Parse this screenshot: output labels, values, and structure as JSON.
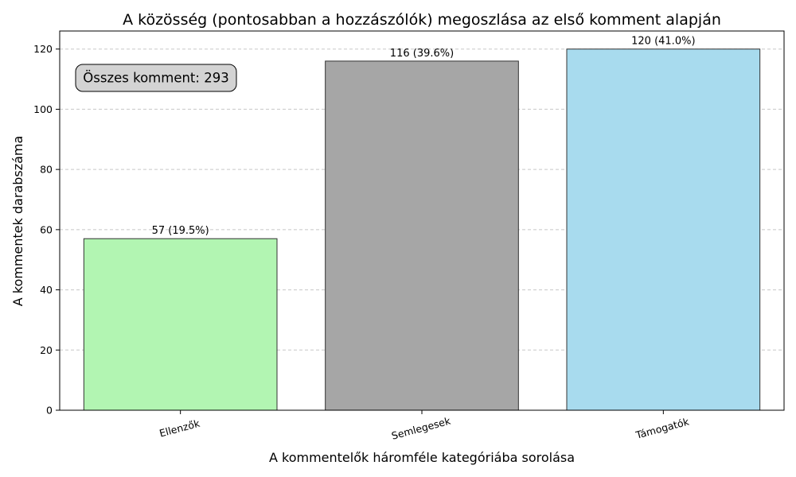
{
  "chart_data": {
    "type": "bar",
    "title": "A közösség (pontosabban a hozzászólók) megoszlása az első komment alapján",
    "xlabel": "A kommentelők háromféle kategóriába sorolása",
    "ylabel": "A kommentek darabszáma",
    "categories": [
      "Ellenzők",
      "Semlegesek",
      "Támogatók"
    ],
    "values": [
      57,
      116,
      120
    ],
    "data_labels": [
      "57 (19.5%)",
      "116 (39.6%)",
      "120 (41.0%)"
    ],
    "colors": [
      "#b2f5b2",
      "#a6a6a6",
      "#a8dbee"
    ],
    "edge_color": "#333333",
    "ylim": [
      0,
      126
    ],
    "yticks": [
      0,
      20,
      40,
      60,
      80,
      100,
      120
    ],
    "grid": "y-dashed",
    "xtick_rotation": -15,
    "annotation": {
      "text": "Összes komment: 293",
      "placement": "top-left",
      "background": "#d3d3d3"
    }
  }
}
